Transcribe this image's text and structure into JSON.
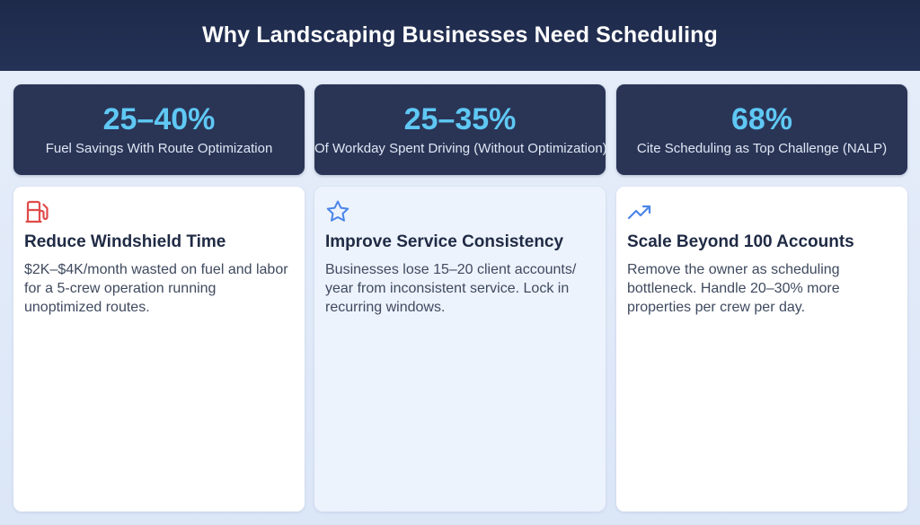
{
  "header": {
    "title": "Why Landscaping Businesses Need Scheduling"
  },
  "stats": [
    {
      "value": "25–40%",
      "label": "Fuel Savings With Route Optimization"
    },
    {
      "value": "25–35%",
      "label": "Of Workday Spent Driving (Without Optimization)"
    },
    {
      "value": "68%",
      "label": "Cite Scheduling as Top Challenge (NALP)"
    }
  ],
  "cards": [
    {
      "icon": "fuel-pump-icon",
      "icon_color": "#e04b4b",
      "title": "Reduce Windshield Time",
      "description": "$2K–$4K/month wasted on fuel and labor for a 5-crew operation running unoptimized routes."
    },
    {
      "icon": "star-icon",
      "icon_color": "#4a86e8",
      "title": "Improve Service Consistency",
      "description": "Businesses lose 15–20 client accounts/ year from inconsistent service. Lock in recurring windows."
    },
    {
      "icon": "trending-up-icon",
      "icon_color": "#4a86e8",
      "title": "Scale Beyond 100 Accounts",
      "description": "Remove the owner as scheduling bottleneck. Handle 20–30% more properties per crew per day."
    }
  ],
  "colors": {
    "header_bg": "#1e2a4a",
    "stat_bg": "#2a3556",
    "stat_value": "#5fc8f4",
    "page_bg": "#e2eaf8"
  }
}
